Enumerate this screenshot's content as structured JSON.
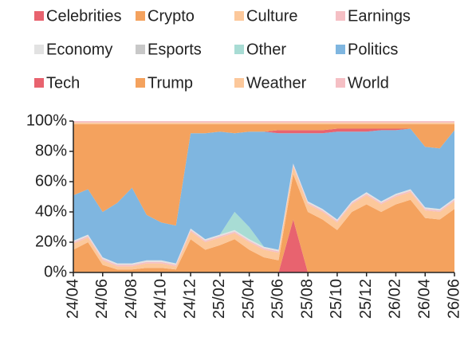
{
  "chart_data": {
    "type": "stacked_area",
    "categories": [
      "24/04",
      null,
      "24/06",
      null,
      "24/08",
      null,
      "24/10",
      null,
      "24/12",
      null,
      "25/02",
      null,
      "25/04",
      null,
      "25/06",
      null,
      "25/08",
      null,
      "25/10",
      null,
      "25/12",
      null,
      "26/02",
      null,
      "26/04",
      null,
      "26/06"
    ],
    "ylim": [
      0,
      100
    ],
    "yticks": [
      {
        "value": 0,
        "label": "0%"
      },
      {
        "value": 20,
        "label": "20%"
      },
      {
        "value": 40,
        "label": "40%"
      },
      {
        "value": 60,
        "label": "60%"
      },
      {
        "value": 80,
        "label": "80%"
      },
      {
        "value": 100,
        "label": "100%"
      }
    ],
    "legend": "top",
    "series": [
      {
        "name": "Celebrities",
        "color": "#e8636f",
        "values": [
          0,
          0,
          0,
          0,
          0,
          0,
          0,
          0,
          0,
          0,
          0,
          0,
          0,
          0,
          0,
          35,
          0,
          0,
          0,
          0,
          0,
          0,
          0,
          0,
          0,
          0,
          0
        ]
      },
      {
        "name": "Crypto",
        "color": "#f4a25e",
        "values": [
          15,
          20,
          5,
          2,
          2,
          3,
          3,
          2,
          22,
          15,
          18,
          22,
          15,
          10,
          8,
          30,
          40,
          35,
          28,
          40,
          45,
          40,
          45,
          48,
          36,
          35,
          42
        ]
      },
      {
        "name": "Culture",
        "color": "#fcc89b",
        "values": [
          4,
          3,
          3,
          2,
          2,
          3,
          3,
          2,
          5,
          5,
          5,
          4,
          5,
          5,
          5,
          5,
          5,
          5,
          5,
          5,
          6,
          5,
          5,
          5,
          5,
          5,
          5
        ]
      },
      {
        "name": "Earnings",
        "color": "#f5bfc4",
        "values": [
          1,
          1,
          1,
          1,
          1,
          1,
          1,
          1,
          1,
          1,
          1,
          1,
          1,
          1,
          1,
          1,
          1,
          1,
          1,
          1,
          1,
          1,
          1,
          1,
          1,
          1,
          1
        ]
      },
      {
        "name": "Economy",
        "color": "#e2e2e2",
        "values": [
          1,
          1,
          1,
          1,
          1,
          1,
          1,
          1,
          1,
          1,
          1,
          1,
          1,
          1,
          1,
          1,
          1,
          1,
          1,
          1,
          1,
          1,
          1,
          1,
          1,
          1,
          1
        ]
      },
      {
        "name": "Esports",
        "color": "#c8c8c8",
        "values": [
          0,
          0,
          0,
          0,
          0,
          0,
          0,
          0,
          0,
          0,
          0,
          0,
          0,
          0,
          0,
          0,
          0,
          0,
          0,
          0,
          0,
          0,
          0,
          0,
          0,
          0,
          0
        ]
      },
      {
        "name": "Other",
        "color": "#a8dcd4",
        "values": [
          0,
          0,
          0,
          0,
          0,
          0,
          0,
          0,
          0,
          0,
          0,
          12,
          8,
          0,
          0,
          0,
          0,
          0,
          0,
          0,
          0,
          0,
          0,
          0,
          0,
          0,
          0
        ]
      },
      {
        "name": "Politics",
        "color": "#7fb6e0",
        "values": [
          30,
          30,
          30,
          40,
          50,
          30,
          25,
          25,
          63,
          70,
          68,
          52,
          63,
          76,
          77,
          20,
          45,
          50,
          58,
          46,
          40,
          47,
          42,
          40,
          40,
          40,
          45
        ]
      },
      {
        "name": "Tech",
        "color": "#e8636f",
        "values": [
          0,
          0,
          0,
          0,
          0,
          0,
          0,
          0,
          0,
          0,
          0,
          0,
          0,
          0,
          2,
          2,
          2,
          2,
          2,
          2,
          2,
          1,
          1,
          0,
          0,
          0,
          0
        ]
      },
      {
        "name": "Trump",
        "color": "#f4a25e",
        "values": [
          47,
          43,
          58,
          52,
          42,
          60,
          65,
          67,
          6,
          6,
          5,
          6,
          5,
          5,
          4,
          4,
          4,
          4,
          3,
          3,
          3,
          3,
          3,
          3,
          15,
          16,
          4
        ]
      },
      {
        "name": "Weather",
        "color": "#fcc89b",
        "values": [
          1,
          1,
          1,
          1,
          1,
          1,
          1,
          1,
          1,
          1,
          1,
          1,
          1,
          1,
          1,
          1,
          1,
          1,
          1,
          1,
          1,
          1,
          1,
          1,
          1,
          1,
          1
        ]
      },
      {
        "name": "World",
        "color": "#f5bfc4",
        "values": [
          1,
          1,
          1,
          1,
          1,
          1,
          1,
          1,
          1,
          1,
          1,
          1,
          1,
          1,
          1,
          1,
          1,
          1,
          1,
          1,
          1,
          1,
          1,
          1,
          1,
          1,
          1
        ]
      }
    ]
  }
}
